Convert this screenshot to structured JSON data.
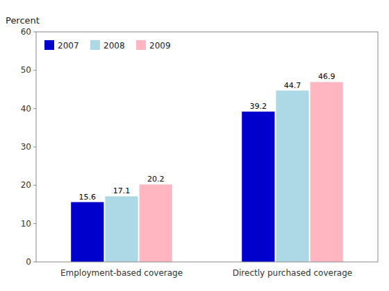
{
  "chart_data": {
    "type": "bar",
    "y_label": "Percent",
    "categories": [
      "Employment-based coverage",
      "Directly purchased coverage"
    ],
    "series": [
      {
        "name": "2007",
        "color": "#0000cc",
        "values": [
          15.6,
          39.2
        ]
      },
      {
        "name": "2008",
        "color": "#add8e6",
        "values": [
          17.1,
          44.7
        ]
      },
      {
        "name": "2009",
        "color": "#ffb6c1",
        "values": [
          20.2,
          46.9
        ]
      }
    ],
    "ylim": [
      0,
      60
    ],
    "yticks": [
      0,
      10,
      20,
      30,
      40,
      50,
      60
    ],
    "grid": false,
    "legend": "upper left",
    "data_labels": true
  }
}
